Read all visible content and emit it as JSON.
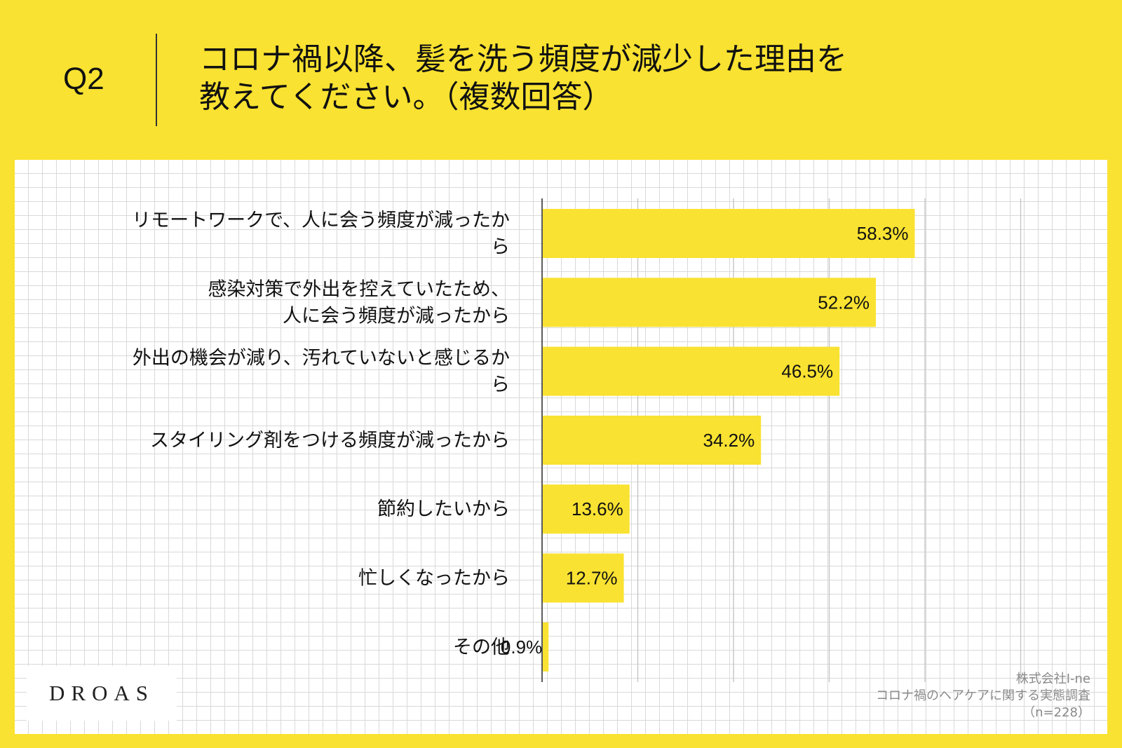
{
  "header": {
    "question_no": "Q2",
    "title_line1": "コロナ禍以降、髪を洗う頻度が減少した理由を",
    "title_line2": "教えてください。（複数回答）"
  },
  "chart_data": {
    "type": "bar",
    "orientation": "horizontal",
    "categories": [
      [
        "リモートワークで、人に会う頻度が減ったか",
        "ら"
      ],
      [
        "感染対策で外出を控えていたため、",
        "人に会う頻度が減ったから"
      ],
      [
        "外出の機会が減り、汚れていないと感じるか",
        "ら"
      ],
      [
        "スタイリング剤をつける頻度が減ったから"
      ],
      [
        "節約したいから"
      ],
      [
        "忙しくなったから"
      ],
      [
        "その他"
      ]
    ],
    "values": [
      58.3,
      52.2,
      46.5,
      34.2,
      13.6,
      12.7,
      0.9
    ],
    "value_labels": [
      "58.3%",
      "52.2%",
      "46.5%",
      "34.2%",
      "13.6%",
      "12.7%",
      "0.9%"
    ],
    "xlim": [
      0,
      85
    ],
    "x_gridline_step": 15,
    "bar_color": "#F9E231",
    "legend": "none"
  },
  "logo": {
    "text": "DROAS"
  },
  "source": {
    "line1": "株式会社I-ne",
    "line2": "コロナ禍のヘアケアに関する実態調査",
    "line3": "（n=228）"
  }
}
